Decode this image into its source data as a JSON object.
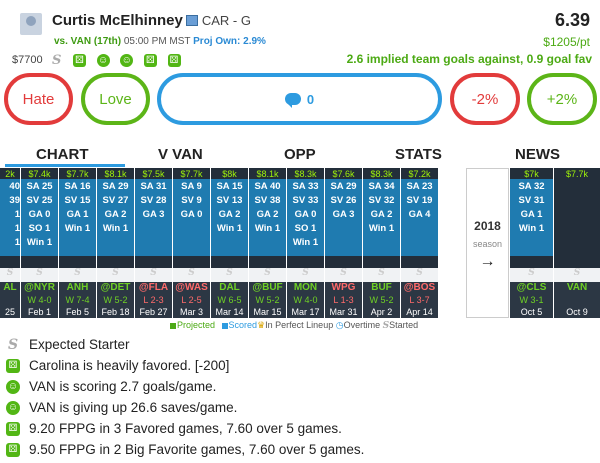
{
  "player": {
    "name": "Curtis McElhinney",
    "team_pos": "CAR - G",
    "points": "6.39",
    "salary": "$7700",
    "game_line": "vs. VAN (17th)",
    "game_time": "05:00 PM MST",
    "proj_own": "Proj Own: 2.9%",
    "price_per_point": "$1205/pt",
    "implied": "2.6 implied team goals against, 0.9 goal fav"
  },
  "actions": {
    "hate": "Hate",
    "love": "Love",
    "comment_count": "0",
    "minus": "-2%",
    "plus": "+2%"
  },
  "tabs": [
    "CHART",
    "V VAN",
    "OPP",
    "STATS",
    "NEWS"
  ],
  "season": {
    "year": "2018",
    "label": "season",
    "arrow": "→"
  },
  "colors": {
    "projected": "#4caa14",
    "scored": "#2d9be0",
    "game_bg": "#1f7bb0",
    "dark_bg": "#232e3a"
  },
  "games": [
    {
      "top": "2k",
      "lines": [
        "40",
        "39",
        "1",
        "1",
        "1"
      ],
      "opp": "AL",
      "result": "",
      "rc": "w",
      "date": "25"
    },
    {
      "top": "$7.4k",
      "lines": [
        "SA 25",
        "SV 25",
        "GA 0",
        "SO 1",
        "Win 1"
      ],
      "opp": "@NYR",
      "result": "W 4-0",
      "rc": "w",
      "date": "Feb 1"
    },
    {
      "top": "$7.7k",
      "lines": [
        "SA 16",
        "SV 15",
        "GA 1",
        "Win 1"
      ],
      "opp": "ANH",
      "result": "W 7-4",
      "rc": "w",
      "date": "Feb 5"
    },
    {
      "top": "$8.1k",
      "lines": [
        "SA 29",
        "SV 27",
        "GA 2",
        "Win 1"
      ],
      "opp": "@DET",
      "result": "W 5-2",
      "rc": "w",
      "date": "Feb 18"
    },
    {
      "top": "$7.5k",
      "lines": [
        "SA 31",
        "SV 28",
        "GA 3"
      ],
      "opp": "@FLA",
      "result": "L 2-3",
      "rc": "l",
      "date": "Feb 27"
    },
    {
      "top": "$7.7k",
      "lines": [
        "SA 9",
        "SV 9",
        "GA 0"
      ],
      "opp": "@WAS",
      "result": "L 2-5",
      "rc": "l",
      "date": "Mar 3"
    },
    {
      "top": "$8k",
      "lines": [
        "SA 15",
        "SV 13",
        "GA 2",
        "Win 1"
      ],
      "opp": "DAL",
      "result": "W 6-5",
      "rc": "w",
      "date": "Mar 14"
    },
    {
      "top": "$8.1k",
      "lines": [
        "SA 40",
        "SV 38",
        "GA 2",
        "Win 1"
      ],
      "opp": "@BUF",
      "result": "W 5-2",
      "rc": "w",
      "date": "Mar 15"
    },
    {
      "top": "$8.3k",
      "lines": [
        "SA 33",
        "SV 33",
        "GA 0",
        "SO 1",
        "Win 1"
      ],
      "opp": "MON",
      "result": "W 4-0",
      "rc": "w",
      "date": "Mar 17"
    },
    {
      "top": "$7.6k",
      "lines": [
        "SA 29",
        "SV 26",
        "GA 3"
      ],
      "opp": "WPG",
      "result": "L 1-3",
      "rc": "l",
      "date": "Mar 31"
    },
    {
      "top": "$8.3k",
      "lines": [
        "SA 34",
        "SV 32",
        "GA 2",
        "Win 1"
      ],
      "opp": "BUF",
      "result": "W 5-2",
      "rc": "w",
      "date": "Apr 2"
    },
    {
      "top": "$7.2k",
      "lines": [
        "SA 23",
        "SV 19",
        "GA 4"
      ],
      "opp": "@BOS",
      "result": "L 3-7",
      "rc": "l",
      "date": "Apr 14"
    }
  ],
  "recent": [
    {
      "top": "$7k",
      "lines": [
        "SA 32",
        "SV 31",
        "GA 1",
        "Win 1"
      ],
      "opp": "@CLS",
      "result": "W 3-1",
      "rc": "w",
      "date": "Oct 5"
    },
    {
      "top": "$7.7k",
      "lines": [],
      "opp": "VAN",
      "result": "",
      "rc": "w",
      "date": "Oct 9"
    }
  ],
  "legend": {
    "projected": "Projected",
    "scored": "Scored",
    "perfect": "In Perfect Lineup",
    "overtime": "Overtime",
    "started": "Started"
  },
  "notes": [
    {
      "icon": "s",
      "text": "Expected Starter"
    },
    {
      "icon": "dice",
      "text": "Carolina is heavily favored. [-200]"
    },
    {
      "icon": "smile",
      "text": "VAN is scoring 2.7 goals/game."
    },
    {
      "icon": "smile",
      "text": "VAN is giving up 26.6 saves/game."
    },
    {
      "icon": "dice",
      "text": "9.20 FPPG in 3 Favored games, 7.60 over 5 games."
    },
    {
      "icon": "dice",
      "text": "9.50 FPPG in 2 Big Favorite games, 7.60 over 5 games."
    }
  ]
}
